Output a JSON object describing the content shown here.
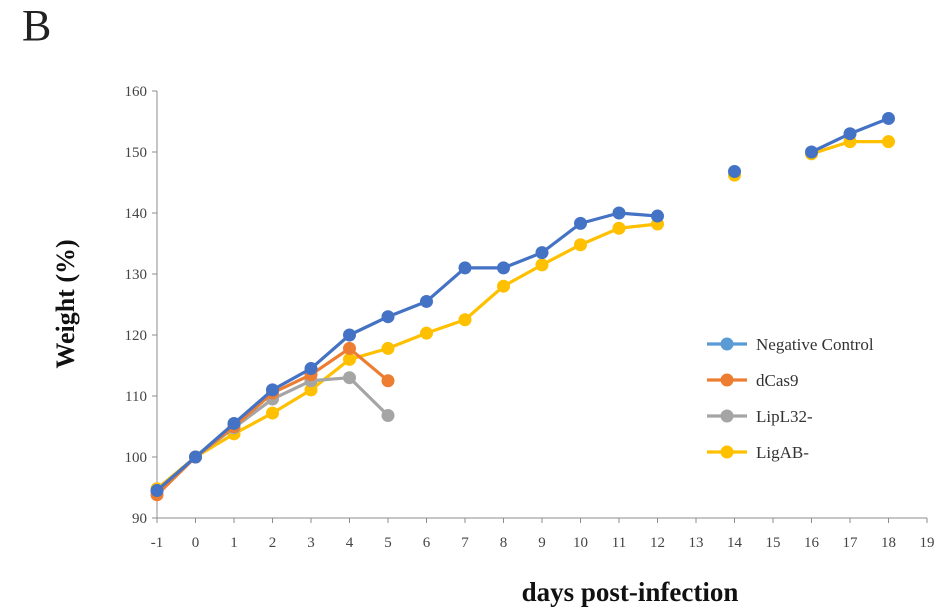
{
  "figure": {
    "panel_label": "B"
  },
  "chart_data": {
    "type": "line",
    "xlabel": "days post-infection",
    "ylabel": "Weight (%)",
    "xlim": [
      -1,
      19
    ],
    "ylim": [
      90,
      160
    ],
    "x_ticks": [
      -1,
      0,
      1,
      2,
      3,
      4,
      5,
      6,
      7,
      8,
      9,
      10,
      11,
      12,
      13,
      14,
      15,
      16,
      17,
      18,
      19
    ],
    "y_ticks": [
      90,
      100,
      110,
      120,
      130,
      140,
      150,
      160
    ],
    "grid": false,
    "legend_position": "right",
    "series": [
      {
        "name": "Negative Control",
        "color": "#4472C4",
        "legend_color": "#5B9BD5",
        "points": [
          [
            -1,
            94.5
          ],
          [
            0,
            100
          ],
          [
            1,
            105.5
          ],
          [
            2,
            111
          ],
          [
            3,
            114.5
          ],
          [
            4,
            120
          ],
          [
            5,
            123
          ],
          [
            6,
            125.5
          ],
          [
            7,
            131
          ],
          [
            8,
            131
          ],
          [
            9,
            133.5
          ],
          [
            10,
            138.3
          ],
          [
            11,
            140
          ],
          [
            12,
            139.5
          ],
          [
            14,
            146.8
          ],
          [
            16,
            150
          ],
          [
            17,
            153
          ],
          [
            18,
            155.5
          ]
        ]
      },
      {
        "name": "dCas9",
        "color": "#ED7D31",
        "legend_color": "#ED7D31",
        "points": [
          [
            -1,
            93.8
          ],
          [
            0,
            100
          ],
          [
            1,
            105
          ],
          [
            2,
            110.5
          ],
          [
            3,
            113.5
          ],
          [
            4,
            117.8
          ],
          [
            5,
            112.5
          ]
        ]
      },
      {
        "name": "LipL32-",
        "color": "#A5A5A5",
        "legend_color": "#A5A5A5",
        "points": [
          [
            -1,
            94.5
          ],
          [
            0,
            100
          ],
          [
            1,
            104.8
          ],
          [
            2,
            109.5
          ],
          [
            3,
            112.5
          ],
          [
            4,
            113
          ],
          [
            5,
            106.8
          ]
        ]
      },
      {
        "name": "LigAB-",
        "color": "#FFC000",
        "legend_color": "#FFC000",
        "points": [
          [
            -1,
            94.8
          ],
          [
            0,
            100
          ],
          [
            1,
            103.8
          ],
          [
            2,
            107.2
          ],
          [
            3,
            111
          ],
          [
            4,
            116
          ],
          [
            5,
            117.8
          ],
          [
            6,
            120.3
          ],
          [
            7,
            122.5
          ],
          [
            8,
            128
          ],
          [
            9,
            131.5
          ],
          [
            10,
            134.8
          ],
          [
            11,
            137.5
          ],
          [
            12,
            138.2
          ],
          [
            14,
            146.2
          ],
          [
            16,
            149.7
          ],
          [
            17,
            151.7
          ],
          [
            18,
            151.7
          ]
        ]
      }
    ]
  }
}
